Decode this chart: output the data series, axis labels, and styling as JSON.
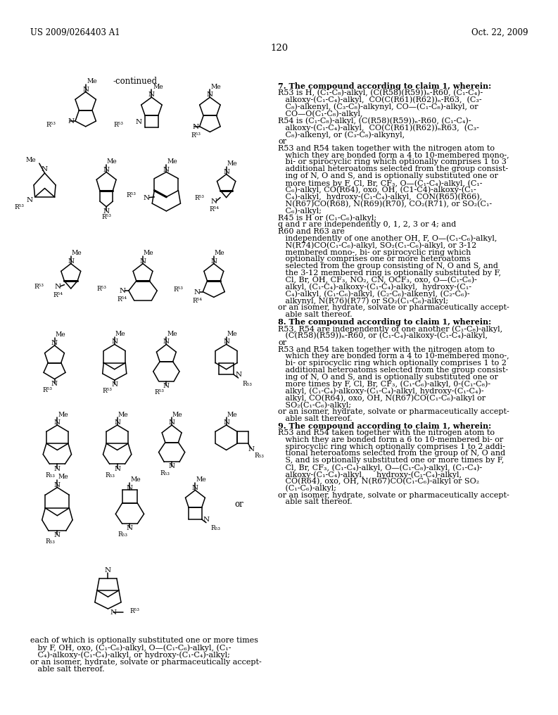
{
  "background_color": "#ffffff",
  "page_number": "120",
  "header_left": "US 2009/0264403 A1",
  "header_right": "Oct. 22, 2009",
  "continued_label": "-continued",
  "left_text_lines": [
    "each of which is optionally substituted one or more times",
    "   by F, OH, oxo, (C₁-C₆)-alkyl, O—(C₁-C₆)-alkyl, (C₁-",
    "   C₄)-alkoxy-(C₁-C₄)-alkyl, or hydroxy-(C₁-C₄)-alkyl;",
    "or an isomer, hydrate, solvate or pharmaceutically accept-",
    "   able salt thereof."
  ],
  "right_col_text": [
    {
      "bold": true,
      "indent": false,
      "text": "7. The compound according to claim 1, wherein:"
    },
    {
      "bold": false,
      "indent": false,
      "text": "R53 is H, (C₁-C₈)-alkyl, (C(R58)(R59))ₙ-R60, (C₁-C₄)-"
    },
    {
      "bold": false,
      "indent": true,
      "text": "alkoxy-(C₁-C₄)-alkyl,  CO(C(R61)(R62))ₙ-R63,  (C₃-"
    },
    {
      "bold": false,
      "indent": true,
      "text": "C₈)-alkenyl, (C₃-C₈)-alkynyl, CO—(C₁-C₈)-alkyl, or"
    },
    {
      "bold": false,
      "indent": true,
      "text": "CO—O(C₁-C₈)-alkyl,"
    },
    {
      "bold": false,
      "indent": false,
      "text": "R54 is (C₁-C₈)-alkyl, (C(R58)(R59))ₙ-R60, (C₁-C₄)-"
    },
    {
      "bold": false,
      "indent": true,
      "text": "alkoxy-(C₁-C₄)-alkyl,  CO(C(R61)(R62))ₙR63,  (C₃-"
    },
    {
      "bold": false,
      "indent": true,
      "text": "C₈)-alkenyl, or (C₃-C₈)-alkynyl,"
    },
    {
      "bold": false,
      "indent": false,
      "text": "or"
    },
    {
      "bold": false,
      "indent": false,
      "text": "R53 and R54 taken together with the nitrogen atom to"
    },
    {
      "bold": false,
      "indent": true,
      "text": "which they are bonded form a 4 to 10-membered mono-,"
    },
    {
      "bold": false,
      "indent": true,
      "text": "bi- or spirocyclic ring which optionally comprises 1 to 3"
    },
    {
      "bold": false,
      "indent": true,
      "text": "additional heteroatoms selected from the group consist-"
    },
    {
      "bold": false,
      "indent": true,
      "text": "ing of N, O and S, and is optionally substituted one or"
    },
    {
      "bold": false,
      "indent": true,
      "text": "more times by F, Cl, Br, CF₃, O—(C₁-C₄)-alkyl, (C₁-"
    },
    {
      "bold": false,
      "indent": true,
      "text": "C₆)-alkyl, CO(R64), oxo, OH, (C1-C4)-alkoxy-(C₁-"
    },
    {
      "bold": false,
      "indent": true,
      "text": "C₄)-alkyl,  hydroxy-(C₁-C₄)-alkyl,  CON(R65)(R66),"
    },
    {
      "bold": false,
      "indent": true,
      "text": "N(R67)CO(R68), N(R69)(R70), CO₂(R71), or SO₂(C₁-"
    },
    {
      "bold": false,
      "indent": true,
      "text": "C₆)-alkyl;"
    },
    {
      "bold": false,
      "indent": false,
      "text": "R45 is H or (C₁-C₆)-alkyl;"
    },
    {
      "bold": false,
      "indent": false,
      "text": "q and r are independently 0, 1, 2, 3 or 4; and"
    },
    {
      "bold": false,
      "indent": false,
      "text": "R60 and R63 are"
    },
    {
      "bold": false,
      "indent": true,
      "text": "independently of one another OH, F, O—(C₁-C₆)-alkyl,"
    },
    {
      "bold": false,
      "indent": true,
      "text": "N(R74)CO(C₁-C₆)-alkyl, SO₂(C₁-C₆)-alkyl, or 3-12"
    },
    {
      "bold": false,
      "indent": true,
      "text": "membered mono-, bi- or spirocyclic ring which"
    },
    {
      "bold": false,
      "indent": true,
      "text": "optionally comprises one or more heteroatoms"
    },
    {
      "bold": false,
      "indent": true,
      "text": "selected from the group consisting of N, O and S, and"
    },
    {
      "bold": false,
      "indent": true,
      "text": "the 3-12 membered ring is optionally substituted by F,"
    },
    {
      "bold": false,
      "indent": true,
      "text": "Cl, Br, OH, CF₃, NO₂, CN, OCF₃, oxo, O—(C₁-C₆)-"
    },
    {
      "bold": false,
      "indent": true,
      "text": "alkyl, (C₁-C₄)-alkoxy-(C₁-C₄)-alkyl,  hydroxy-(C₁-"
    },
    {
      "bold": false,
      "indent": true,
      "text": "C₄)-alkyl, (C₁-C₆)-alkyl, (C₂-C₆)-alkenyl, (C₂-C₆)-"
    },
    {
      "bold": false,
      "indent": true,
      "text": "alkynyl, N(R76)(R77) or SO₂(C₁-C₆)-alkyl;"
    },
    {
      "bold": false,
      "indent": false,
      "text": "or an isomer, hydrate, solvate or pharmaceutically accept-"
    },
    {
      "bold": false,
      "indent": true,
      "text": "able salt thereof."
    },
    {
      "bold": true,
      "indent": false,
      "text": "8. The compound according to claim 1, wherein:"
    },
    {
      "bold": false,
      "indent": false,
      "text": "R53, R54 are independently of one another (C₁-C₈)-alkyl,"
    },
    {
      "bold": false,
      "indent": true,
      "text": "(C(R58)(R59))ₙ-R60, or (C₁-C₄)-alkoxy-(C₁-C₄)-alkyl,"
    },
    {
      "bold": false,
      "indent": false,
      "text": "or"
    },
    {
      "bold": false,
      "indent": false,
      "text": "R53 and R54 taken together with the nitrogen atom to"
    },
    {
      "bold": false,
      "indent": true,
      "text": "which they are bonded form a 4 to 10-membered mono-,"
    },
    {
      "bold": false,
      "indent": true,
      "text": "bi- or spirocyclic ring which optionally comprises 1 to 2"
    },
    {
      "bold": false,
      "indent": true,
      "text": "additional heteroatoms selected from the group consist-"
    },
    {
      "bold": false,
      "indent": true,
      "text": "ing of N, O and S, and is optionally substituted one or"
    },
    {
      "bold": false,
      "indent": true,
      "text": "more times by F, Cl, Br, CF₃, (C₁-C₆)-alkyl, 0-(C₁-C₈)-"
    },
    {
      "bold": false,
      "indent": true,
      "text": "alkyl, (C₁-C₄)-alkoxy-(C₁-C₄)-alkyl, hydroxy-(C₁-C₄)-"
    },
    {
      "bold": false,
      "indent": true,
      "text": "alkyl, CO(R64), oxo, OH, N(R67)CO(C₁-C₆)-alkyl or"
    },
    {
      "bold": false,
      "indent": true,
      "text": "SO₂(C₁-C₆)-alkyl;"
    },
    {
      "bold": false,
      "indent": false,
      "text": "or an isomer, hydrate, solvate or pharmaceutically accept-"
    },
    {
      "bold": false,
      "indent": true,
      "text": "able salt thereof."
    },
    {
      "bold": true,
      "indent": false,
      "text": "9. The compound according to claim 1, wherein:"
    },
    {
      "bold": false,
      "indent": false,
      "text": "R53 and R54 taken together with the nitrogen atom to"
    },
    {
      "bold": false,
      "indent": true,
      "text": "which they are bonded form a 6 to 10-membered bi- or"
    },
    {
      "bold": false,
      "indent": true,
      "text": "spirocyclic ring which optionally comprises 1 to 2 addi-"
    },
    {
      "bold": false,
      "indent": true,
      "text": "tional heteroatoms selected from the group of N, O and"
    },
    {
      "bold": false,
      "indent": true,
      "text": "S, and is optionally substituted one or more times by F,"
    },
    {
      "bold": false,
      "indent": true,
      "text": "Cl, Br, CF₃, (C₁-C₄)-alkyl, O—(C₁-C₈)-alkyl, (C₁-C₄)-"
    },
    {
      "bold": false,
      "indent": true,
      "text": "alkoxy-(C₁-C₄)-alkyl,     hydroxy-(C₁-C₄)-alkyl,"
    },
    {
      "bold": false,
      "indent": true,
      "text": "CO(R64), oxo, OH, N(R67)CO(C₁-C₆)-alkyl or SO₂"
    },
    {
      "bold": false,
      "indent": true,
      "text": "(C₁-C₆)-alkyl;"
    },
    {
      "bold": false,
      "indent": false,
      "text": "or an isomer, hydrate, solvate or pharmaceutically accept-"
    },
    {
      "bold": false,
      "indent": true,
      "text": "able salt thereof."
    }
  ]
}
